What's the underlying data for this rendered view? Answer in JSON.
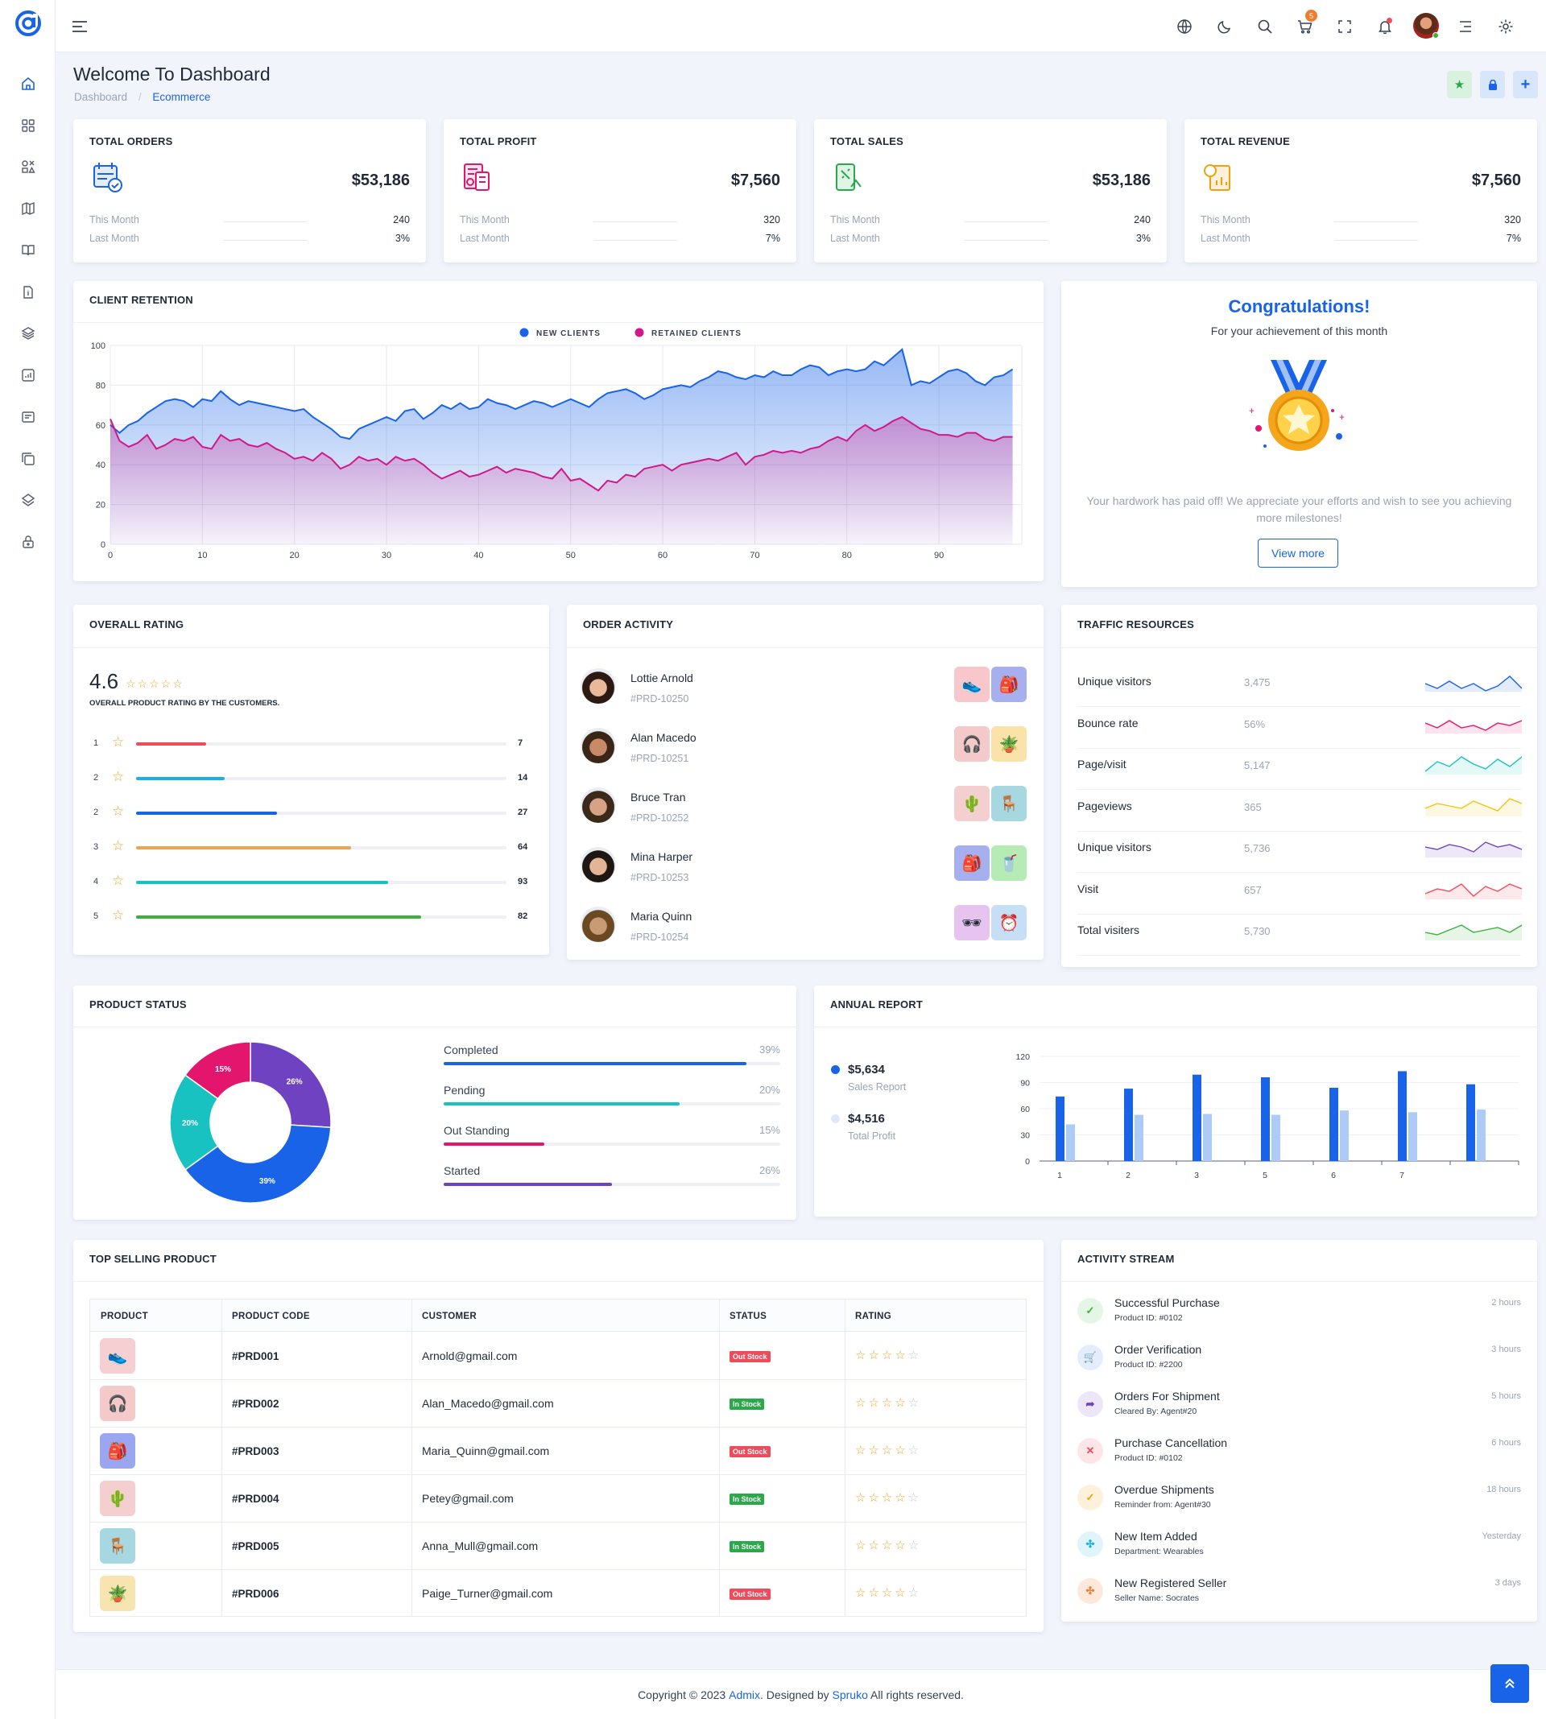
{
  "header": {
    "title": "Welcome To Dashboard",
    "breadcrumb": [
      "Dashboard",
      "Ecommerce"
    ],
    "cart_count": "5"
  },
  "stats": [
    {
      "title": "TOTAL ORDERS",
      "value": "$53,186",
      "this_month_label": "This Month",
      "this_month": "240",
      "last_month_label": "Last Month",
      "last_month": "3%",
      "color": "#1863e8"
    },
    {
      "title": "TOTAL PROFIT",
      "value": "$7,560",
      "this_month_label": "This Month",
      "this_month": "320",
      "last_month_label": "Last Month",
      "last_month": "7%",
      "color": "#e4156c"
    },
    {
      "title": "TOTAL SALES",
      "value": "$53,186",
      "this_month_label": "This Month",
      "this_month": "240",
      "last_month_label": "Last Month",
      "last_month": "3%",
      "color": "#2aa84a"
    },
    {
      "title": "TOTAL REVENUE",
      "value": "$7,560",
      "this_month_label": "This Month",
      "this_month": "320",
      "last_month_label": "Last Month",
      "last_month": "7%",
      "color": "#f1a10e"
    }
  ],
  "retention": {
    "title": "CLIENT RETENTION",
    "chart_data": {
      "type": "area",
      "series": [
        {
          "name": "NEW CLIENTS",
          "color": "#1863e8",
          "values": [
            60,
            56,
            60,
            62,
            66,
            69,
            72,
            73,
            72,
            69,
            73,
            72,
            77,
            73,
            70,
            72,
            71,
            70,
            69,
            68,
            67,
            68,
            64,
            61,
            58,
            54,
            53,
            58,
            60,
            62,
            64,
            62,
            67,
            68,
            63,
            66,
            70,
            68,
            71,
            68,
            69,
            73,
            71,
            70,
            68,
            70,
            72,
            71,
            69,
            71,
            73,
            71,
            69,
            73,
            76,
            77,
            78,
            76,
            73,
            75,
            78,
            79,
            80,
            79,
            82,
            84,
            87,
            86,
            84,
            83,
            85,
            84,
            87,
            85,
            85,
            88,
            90,
            89,
            85,
            87,
            88,
            87,
            88,
            92,
            90,
            94,
            98,
            80,
            82,
            81,
            84,
            87,
            88,
            86,
            82,
            80,
            84,
            85,
            88
          ]
        },
        {
          "name": "RETAINED CLIENTS",
          "color": "#d0188c",
          "values": [
            63,
            52,
            49,
            51,
            55,
            48,
            50,
            53,
            52,
            54,
            49,
            48,
            55,
            52,
            53,
            50,
            49,
            51,
            48,
            46,
            43,
            44,
            42,
            46,
            43,
            38,
            40,
            44,
            42,
            43,
            40,
            44,
            42,
            43,
            40,
            36,
            33,
            35,
            37,
            34,
            35,
            37,
            39,
            36,
            38,
            37,
            36,
            34,
            33,
            38,
            32,
            33,
            30,
            27,
            32,
            31,
            35,
            34,
            38,
            39,
            40,
            37,
            40,
            41,
            42,
            43,
            42,
            44,
            46,
            40,
            44,
            45,
            47,
            46,
            47,
            46,
            48,
            49,
            52,
            54,
            52,
            57,
            60,
            57,
            59,
            62,
            64,
            61,
            58,
            57,
            55,
            55,
            54,
            56,
            56,
            53,
            52,
            54,
            54
          ]
        }
      ],
      "xlim": [
        0,
        99
      ],
      "ylim": [
        0,
        100
      ],
      "x_ticks": [
        "0",
        "10",
        "20",
        "30",
        "40",
        "50",
        "60",
        "70",
        "80",
        "90"
      ],
      "y_ticks": [
        "0",
        "20",
        "40",
        "60",
        "80",
        "100"
      ],
      "legend": "top"
    }
  },
  "congrats": {
    "title": "Congratulations!",
    "subtitle": "For your achievement of this month",
    "text": "Your hardwork has paid off! We appreciate your efforts and wish to see you achieving more milestones!",
    "button": "View more"
  },
  "rating": {
    "title": "OVERALL RATING",
    "score": "4.6",
    "caption": "OVERALL PRODUCT RATING BY THE CUSTOMERS.",
    "rows": [
      {
        "label": "1",
        "count": "7",
        "fraction": 0.19,
        "color": "#ef4b5b"
      },
      {
        "label": "2",
        "count": "14",
        "fraction": 0.24,
        "color": "#17b1e8"
      },
      {
        "label": "2",
        "count": "27",
        "fraction": 0.38,
        "color": "#1863e8"
      },
      {
        "label": "3",
        "count": "64",
        "fraction": 0.58,
        "color": "#f1a251"
      },
      {
        "label": "4",
        "count": "93",
        "fraction": 0.68,
        "color": "#18c2c0"
      },
      {
        "label": "5",
        "count": "82",
        "fraction": 0.77,
        "color": "#3bb03a"
      }
    ]
  },
  "orders": {
    "title": "ORDER ACTIVITY",
    "items": [
      {
        "name": "Lottie Arnold",
        "id": "#PRD-10250"
      },
      {
        "name": "Alan Macedo",
        "id": "#PRD-10251"
      },
      {
        "name": "Bruce Tran",
        "id": "#PRD-10252"
      },
      {
        "name": "Mina Harper",
        "id": "#PRD-10253"
      },
      {
        "name": "Maria Quinn",
        "id": "#PRD-10254"
      }
    ]
  },
  "traffic": {
    "title": "TRAFFIC RESOURCES",
    "rows": [
      {
        "label": "Unique visitors",
        "value": "3,475",
        "color": "#1863e8"
      },
      {
        "label": "Bounce rate",
        "value": "56%",
        "color": "#e4156c"
      },
      {
        "label": "Page/visit",
        "value": "5,147",
        "color": "#18c2c0"
      },
      {
        "label": "Pageviews",
        "value": "365",
        "color": "#f1c40f"
      },
      {
        "label": "Unique visitors",
        "value": "5,736",
        "color": "#6f42c1"
      },
      {
        "label": "Visit",
        "value": "657",
        "color": "#ef4b5b"
      },
      {
        "label": "Total visiters",
        "value": "5,730",
        "color": "#3bb03a"
      }
    ]
  },
  "product_status": {
    "title": "PRODUCT STATUS",
    "chart_data": {
      "type": "pie",
      "slices": [
        {
          "label": "Completed",
          "value": 39,
          "color": "#1863e8"
        },
        {
          "label": "Pending",
          "value": 20,
          "color": "#18c2c0"
        },
        {
          "label": "Out Standing",
          "value": 15,
          "color": "#e4156c"
        },
        {
          "label": "Started",
          "value": 26,
          "color": "#6f42c1"
        }
      ]
    },
    "bars": [
      {
        "label": "Completed",
        "pct": "39%",
        "fraction": 0.9,
        "color": "#1863e8"
      },
      {
        "label": "Pending",
        "pct": "20%",
        "fraction": 0.7,
        "color": "#18c2c0"
      },
      {
        "label": "Out Standing",
        "pct": "15%",
        "fraction": 0.3,
        "color": "#e4156c"
      },
      {
        "label": "Started",
        "pct": "26%",
        "fraction": 0.5,
        "color": "#6f42c1"
      }
    ]
  },
  "annual": {
    "title": "ANNUAL REPORT",
    "legend": [
      {
        "value": "$5,634",
        "label": "Sales Report",
        "color": "#1863e8"
      },
      {
        "value": "$4,516",
        "label": "Total Profit",
        "color": "#dfe8fb"
      }
    ],
    "chart_data": {
      "type": "bar",
      "categories": [
        "1",
        "2",
        "3",
        "5",
        "6",
        "7",
        ""
      ],
      "series": [
        {
          "name": "",
          "color": "#1863e8",
          "values": [
            74,
            83,
            99,
            96,
            84,
            103,
            88
          ]
        },
        {
          "name": "",
          "color": "#aecbf7",
          "values": [
            42,
            53,
            54,
            53,
            58,
            56,
            59
          ]
        }
      ],
      "ylim": [
        0,
        120
      ],
      "y_ticks": [
        "0",
        "30",
        "60",
        "90",
        "120"
      ]
    }
  },
  "top_selling": {
    "title": "TOP SELLING PRODUCT",
    "columns": [
      "PRODUCT",
      "PRODUCT CODE",
      "CUSTOMER",
      "STATUS",
      "RATING"
    ],
    "rows": [
      {
        "code": "#PRD001",
        "customer": "Arnold@gmail.com",
        "status": "Out Stock",
        "thumb": "#f6cfd3",
        "icon": "👟"
      },
      {
        "code": "#PRD002",
        "customer": "Alan_Macedo@gmail.com",
        "status": "In Stock",
        "thumb": "#f4c9c9",
        "icon": "🎧"
      },
      {
        "code": "#PRD003",
        "customer": "Maria_Quinn@gmail.com",
        "status": "Out Stock",
        "thumb": "#9aa6ef",
        "icon": "🎒"
      },
      {
        "code": "#PRD004",
        "customer": "Petey@gmail.com",
        "status": "In Stock",
        "thumb": "#f4cfcf",
        "icon": "🌵"
      },
      {
        "code": "#PRD005",
        "customer": "Anna_Mull@gmail.com",
        "status": "In Stock",
        "thumb": "#a7d7e0",
        "icon": "🪑"
      },
      {
        "code": "#PRD006",
        "customer": "Paige_Turner@gmail.com",
        "status": "Out Stock",
        "thumb": "#f8e4b0",
        "icon": "🪴"
      }
    ]
  },
  "activity": {
    "title": "ACTIVITY STREAM",
    "items": [
      {
        "title": "Successful Purchase",
        "sub": "Product ID: #0102",
        "time": "2 hours",
        "icon": "✓",
        "color": "#3bb03a",
        "bg": "#e4f6e6"
      },
      {
        "title": "Order Verification",
        "sub": "Product ID: #2200",
        "time": "3 hours",
        "icon": "🛒",
        "color": "#1863e8",
        "bg": "#e3edfd"
      },
      {
        "title": "Orders For Shipment",
        "sub": "Cleared By: Agent#20",
        "time": "5 hours",
        "icon": "➦",
        "color": "#6f42c1",
        "bg": "#ece6f8"
      },
      {
        "title": "Purchase Cancellation",
        "sub": "Product ID: #0102",
        "time": "6 hours",
        "icon": "✕",
        "color": "#ef4b5b",
        "bg": "#fde5e8"
      },
      {
        "title": "Overdue Shipments",
        "sub": "Reminder from: Agent#30",
        "time": "18 hours",
        "icon": "✓",
        "color": "#f1a10e",
        "bg": "#fdf1dc"
      },
      {
        "title": "New Item Added",
        "sub": "Department: Wearables",
        "time": "Yesterday",
        "icon": "✣",
        "color": "#17b1e8",
        "bg": "#e0f4fb"
      },
      {
        "title": "New Registered Seller",
        "sub": "Seller Name: Socrates",
        "time": "3 days",
        "icon": "✣",
        "color": "#f07c2e",
        "bg": "#fde9dc"
      }
    ]
  },
  "footer": {
    "pre": "Copyright © 2023 ",
    "brand": "Admix",
    "mid": ". Designed by ",
    "designer": "Spruko",
    "post": " All rights reserved."
  }
}
